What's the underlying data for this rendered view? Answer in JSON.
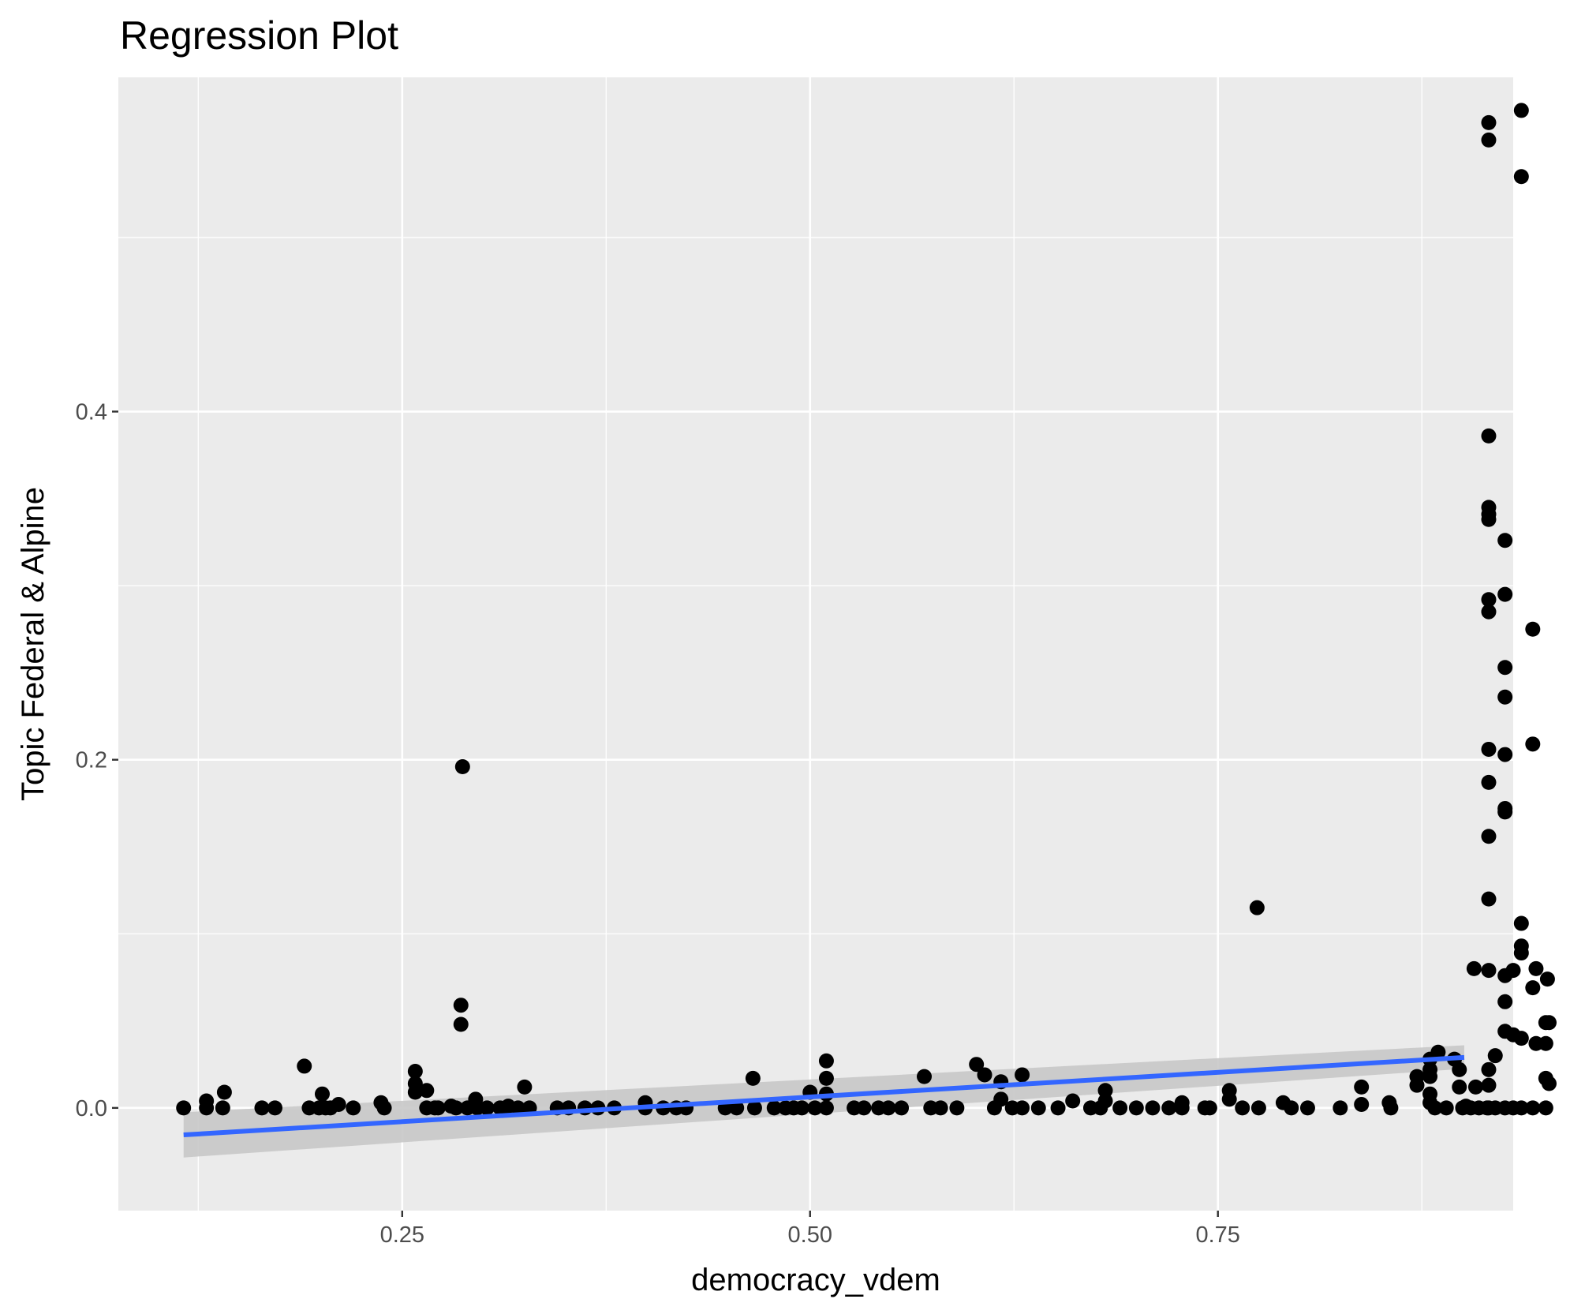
{
  "chart_data": {
    "type": "scatter",
    "title": "Regression Plot",
    "xlabel": "democracy_vdem",
    "ylabel": "Topic Federal & Alpine",
    "xlim": [
      0.076,
      0.931
    ],
    "ylim": [
      -0.059,
      0.592
    ],
    "x_major_ticks": [
      0.25,
      0.5,
      0.75
    ],
    "x_tick_labels": [
      "0.25",
      "0.50",
      "0.75"
    ],
    "x_minor_ticks": [
      0.125,
      0.375,
      0.625,
      0.875
    ],
    "y_major_ticks": [
      0.0,
      0.2,
      0.4
    ],
    "y_tick_labels": [
      "0.0",
      "0.2",
      "0.4"
    ],
    "y_minor_ticks": [
      0.1,
      0.3,
      0.5
    ],
    "grid": true,
    "background": "#ebebeb",
    "point_color": "#000000",
    "regression": {
      "color": "#3366ff",
      "ribbon_color": "#c8c8c8",
      "x": [
        0.116,
        0.901
      ],
      "y": [
        -0.0155,
        0.029
      ],
      "ci_lower": [
        -0.0285,
        0.0225
      ],
      "ci_upper": [
        -0.0025,
        0.036
      ]
    },
    "points": [
      [
        0.116,
        0.0
      ],
      [
        0.13,
        0.004
      ],
      [
        0.13,
        0.0
      ],
      [
        0.14,
        0.0
      ],
      [
        0.141,
        0.009
      ],
      [
        0.164,
        0.0
      ],
      [
        0.172,
        0.0
      ],
      [
        0.19,
        0.024
      ],
      [
        0.193,
        0.0
      ],
      [
        0.199,
        0.0
      ],
      [
        0.201,
        0.008
      ],
      [
        0.203,
        0.0
      ],
      [
        0.206,
        0.0
      ],
      [
        0.211,
        0.002
      ],
      [
        0.22,
        0.0
      ],
      [
        0.237,
        0.003
      ],
      [
        0.239,
        0.0
      ],
      [
        0.258,
        0.021
      ],
      [
        0.258,
        0.014
      ],
      [
        0.258,
        0.009
      ],
      [
        0.265,
        0.01
      ],
      [
        0.265,
        0.0
      ],
      [
        0.27,
        0.0
      ],
      [
        0.272,
        0.0
      ],
      [
        0.28,
        0.001
      ],
      [
        0.283,
        0.0
      ],
      [
        0.287,
        0.196
      ],
      [
        0.286,
        0.059
      ],
      [
        0.286,
        0.048
      ],
      [
        0.29,
        0.0
      ],
      [
        0.295,
        0.005
      ],
      [
        0.296,
        0.0
      ],
      [
        0.302,
        0.0
      ],
      [
        0.31,
        0.0
      ],
      [
        0.315,
        0.001
      ],
      [
        0.321,
        0.0
      ],
      [
        0.325,
        0.012
      ],
      [
        0.328,
        0.0
      ],
      [
        0.345,
        0.0
      ],
      [
        0.352,
        0.0
      ],
      [
        0.362,
        0.0
      ],
      [
        0.37,
        0.0
      ],
      [
        0.38,
        0.0
      ],
      [
        0.399,
        0.003
      ],
      [
        0.399,
        0.0
      ],
      [
        0.41,
        0.0
      ],
      [
        0.418,
        0.0
      ],
      [
        0.424,
        0.0
      ],
      [
        0.448,
        0.0
      ],
      [
        0.455,
        0.0
      ],
      [
        0.465,
        0.017
      ],
      [
        0.466,
        0.0
      ],
      [
        0.478,
        0.0
      ],
      [
        0.485,
        0.0
      ],
      [
        0.49,
        0.0
      ],
      [
        0.495,
        0.0
      ],
      [
        0.5,
        0.009
      ],
      [
        0.503,
        0.0
      ],
      [
        0.51,
        0.017
      ],
      [
        0.51,
        0.027
      ],
      [
        0.51,
        0.008
      ],
      [
        0.51,
        0.0
      ],
      [
        0.527,
        0.0
      ],
      [
        0.533,
        0.0
      ],
      [
        0.542,
        0.0
      ],
      [
        0.548,
        0.0
      ],
      [
        0.556,
        0.0
      ],
      [
        0.57,
        0.018
      ],
      [
        0.574,
        0.0
      ],
      [
        0.58,
        0.0
      ],
      [
        0.59,
        0.0
      ],
      [
        0.602,
        0.025
      ],
      [
        0.607,
        0.019
      ],
      [
        0.613,
        0.0
      ],
      [
        0.617,
        0.015
      ],
      [
        0.617,
        0.005
      ],
      [
        0.624,
        0.0
      ],
      [
        0.63,
        0.019
      ],
      [
        0.63,
        0.0
      ],
      [
        0.64,
        0.0
      ],
      [
        0.652,
        0.0
      ],
      [
        0.661,
        0.004
      ],
      [
        0.672,
        0.0
      ],
      [
        0.678,
        0.0
      ],
      [
        0.681,
        0.01
      ],
      [
        0.681,
        0.004
      ],
      [
        0.69,
        0.0
      ],
      [
        0.7,
        0.0
      ],
      [
        0.71,
        0.0
      ],
      [
        0.72,
        0.0
      ],
      [
        0.728,
        0.003
      ],
      [
        0.728,
        0.0
      ],
      [
        0.742,
        0.0
      ],
      [
        0.745,
        0.0
      ],
      [
        0.757,
        0.01
      ],
      [
        0.757,
        0.005
      ],
      [
        0.765,
        0.0
      ],
      [
        0.775,
        0.0
      ],
      [
        0.774,
        0.115
      ],
      [
        0.79,
        0.003
      ],
      [
        0.795,
        0.0
      ],
      [
        0.805,
        0.0
      ],
      [
        0.825,
        0.0
      ],
      [
        0.838,
        0.012
      ],
      [
        0.838,
        0.002
      ],
      [
        0.855,
        0.003
      ],
      [
        0.856,
        0.0
      ],
      [
        0.872,
        0.018
      ],
      [
        0.872,
        0.013
      ],
      [
        0.88,
        0.028
      ],
      [
        0.88,
        0.022
      ],
      [
        0.88,
        0.018
      ],
      [
        0.88,
        0.008
      ],
      [
        0.88,
        0.003
      ],
      [
        0.883,
        0.0
      ],
      [
        0.885,
        0.032
      ],
      [
        0.89,
        0.0
      ],
      [
        0.895,
        0.028
      ],
      [
        0.898,
        0.022
      ],
      [
        0.898,
        0.012
      ],
      [
        0.9,
        0.0
      ],
      [
        0.902,
        0.001
      ],
      [
        0.905,
        0.0
      ],
      [
        0.907,
        0.08
      ],
      [
        0.908,
        0.012
      ],
      [
        0.91,
        0.0
      ],
      [
        0.915,
        0.0
      ],
      [
        0.916,
        0.566
      ],
      [
        0.916,
        0.556
      ],
      [
        0.916,
        0.386
      ],
      [
        0.916,
        0.345
      ],
      [
        0.916,
        0.341
      ],
      [
        0.916,
        0.338
      ],
      [
        0.916,
        0.292
      ],
      [
        0.916,
        0.285
      ],
      [
        0.916,
        0.206
      ],
      [
        0.916,
        0.187
      ],
      [
        0.916,
        0.156
      ],
      [
        0.916,
        0.12
      ],
      [
        0.916,
        0.079
      ],
      [
        0.916,
        0.022
      ],
      [
        0.916,
        0.013
      ],
      [
        0.916,
        0.0
      ],
      [
        0.92,
        0.03
      ],
      [
        0.92,
        0.0
      ],
      [
        0.926,
        0.326
      ],
      [
        0.926,
        0.295
      ],
      [
        0.926,
        0.253
      ],
      [
        0.926,
        0.236
      ],
      [
        0.926,
        0.203
      ],
      [
        0.926,
        0.172
      ],
      [
        0.926,
        0.17
      ],
      [
        0.926,
        0.076
      ],
      [
        0.926,
        0.061
      ],
      [
        0.926,
        0.044
      ],
      [
        0.926,
        0.0
      ],
      [
        0.931,
        0.079
      ],
      [
        0.931,
        0.042
      ],
      [
        0.931,
        0.0
      ],
      [
        0.936,
        0.573
      ],
      [
        0.936,
        0.535
      ],
      [
        0.936,
        0.106
      ],
      [
        0.936,
        0.093
      ],
      [
        0.936,
        0.089
      ],
      [
        0.936,
        0.04
      ],
      [
        0.936,
        0.0
      ],
      [
        0.943,
        0.275
      ],
      [
        0.943,
        0.209
      ],
      [
        0.943,
        0.069
      ],
      [
        0.943,
        0.0
      ],
      [
        0.945,
        0.08
      ],
      [
        0.945,
        0.037
      ],
      [
        0.951,
        0.049
      ],
      [
        0.951,
        0.037
      ],
      [
        0.951,
        0.017
      ],
      [
        0.951,
        0.0
      ],
      [
        0.952,
        0.074
      ],
      [
        0.953,
        0.049
      ],
      [
        0.953,
        0.014
      ]
    ]
  }
}
